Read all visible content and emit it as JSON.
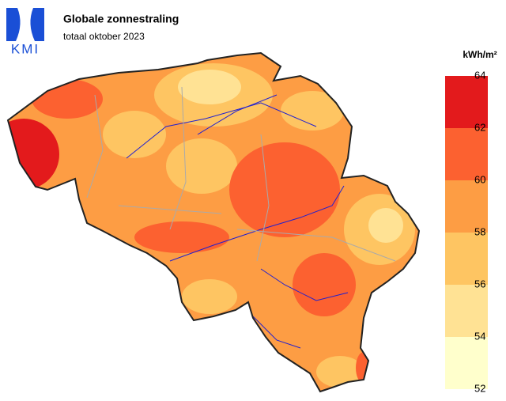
{
  "logo": "KMI",
  "title": "Globale zonnestraling",
  "subtitle": "totaal oktober 2023",
  "legend": {
    "unit": "kWh/m²",
    "ticks": [
      52,
      54,
      56,
      58,
      60,
      62,
      64
    ],
    "colors": [
      "#ffffcc",
      "#ffe294",
      "#fec562",
      "#fd9d44",
      "#fc6130",
      "#e31a1c"
    ]
  }
}
